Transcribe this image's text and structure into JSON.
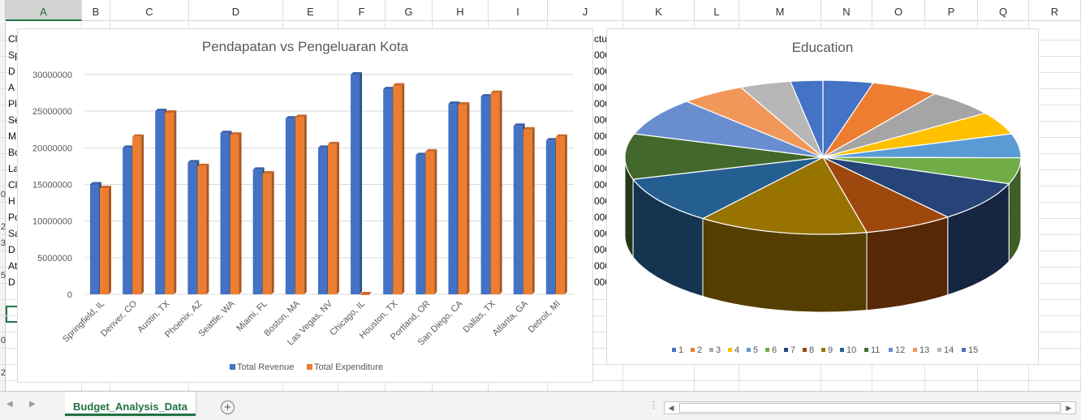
{
  "column_headers": [
    "A",
    "B",
    "C",
    "D",
    "E",
    "F",
    "G",
    "H",
    "I",
    "J",
    "K",
    "L",
    "M",
    "N",
    "O",
    "P",
    "Q",
    "R"
  ],
  "active_column": "A",
  "row_digits": [
    "",
    "",
    "",
    "",
    "",
    "",
    "",
    "",
    "",
    "",
    "0",
    "",
    "2",
    "3",
    "",
    "5",
    "",
    "",
    "",
    "0",
    "",
    "2"
  ],
  "cell_fragments": {
    "col_a": [
      "Cl",
      "Sp",
      "D",
      "A",
      "Pl",
      "Se",
      "M",
      "Bo",
      "La",
      "Cl",
      "H",
      "Po",
      "Sa",
      "D",
      "At",
      "D"
    ],
    "col_j_header": "ctu",
    "col_j_values": [
      "000",
      "000",
      "000",
      "000",
      "000",
      "000",
      "000",
      "000",
      "000",
      "000",
      "000",
      "000",
      "000",
      "000",
      "000"
    ]
  },
  "bar_chart": {
    "chart_data": {
      "type": "bar",
      "title": "Pendapatan vs Pengeluaran Kota",
      "categories": [
        "Springfield, IL",
        "Denver, CO",
        "Austin, TX",
        "Phoenix, AZ",
        "Seattle, WA",
        "Miami, FL",
        "Boston, MA",
        "Las Vegas, NV",
        "Chicago, IL",
        "Houston, TX",
        "Portland, OR",
        "San Diego, CA",
        "Dallas, TX",
        "Atlanta, GA",
        "Detroit, MI"
      ],
      "series": [
        {
          "name": "Total Revenue",
          "color": "#4472C4",
          "values": [
            15000000,
            20000000,
            25000000,
            18000000,
            22000000,
            17000000,
            24000000,
            20000000,
            30000000,
            28000000,
            19000000,
            26000000,
            27000000,
            23000000,
            21000000
          ]
        },
        {
          "name": "Total Expenditure",
          "color": "#ED7D31",
          "values": [
            14500000,
            21500000,
            24800000,
            17500000,
            21800000,
            16500000,
            24200000,
            20500000,
            0,
            28500000,
            19500000,
            25900000,
            27500000,
            22500000,
            21500000
          ]
        }
      ],
      "ylim": [
        0,
        30000000
      ],
      "yticks": [
        "0",
        "5000000",
        "10000000",
        "15000000",
        "20000000",
        "25000000",
        "30000000"
      ],
      "legend": "bottom",
      "grid": true
    }
  },
  "pie_chart": {
    "chart_data": {
      "type": "pie",
      "title": "Education",
      "labels": [
        "1",
        "2",
        "3",
        "4",
        "5",
        "6",
        "7",
        "8",
        "9",
        "10",
        "11",
        "12",
        "13",
        "14",
        "15"
      ],
      "values": [
        4.2,
        5.6,
        5.9,
        4.9,
        5.2,
        5.6,
        8.8,
        7.5,
        14.3,
        10.3,
        9.8,
        8.2,
        5.4,
        4.3,
        2.7
      ],
      "colors": [
        "#4472C4",
        "#ED7D31",
        "#A5A5A5",
        "#FFC000",
        "#5B9BD5",
        "#70AD47",
        "#264478",
        "#9E480E",
        "#997300",
        "#255E91",
        "#43682B",
        "#698ED0",
        "#F1975A",
        "#B7B7B7"
      ],
      "legend": "bottom"
    }
  },
  "sheet_tab": "Budget_Analysis_Data",
  "add_sheet_label": "+",
  "more_label": "⋮"
}
